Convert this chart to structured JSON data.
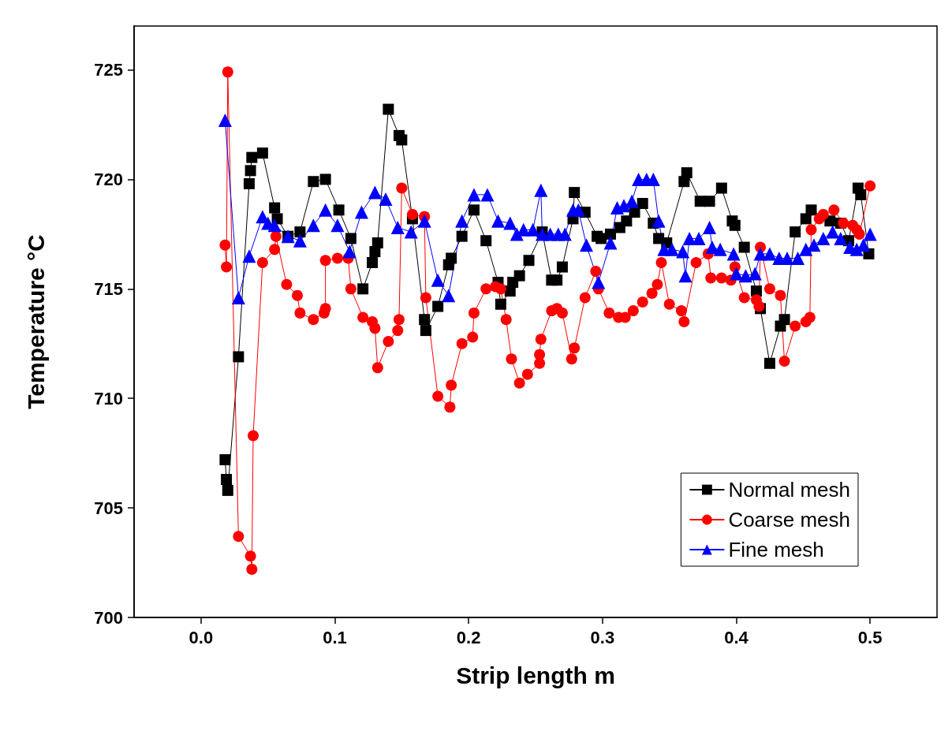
{
  "chart_data": {
    "type": "line",
    "xlabel": "Strip length m",
    "ylabel": "Temperature °C",
    "xlim": [
      -0.05,
      0.55
    ],
    "xticks": [
      {
        "value": 0,
        "label": "0.0"
      },
      0.1,
      0.2,
      0.3,
      0.4,
      0.5
    ],
    "ylim": [
      700,
      727
    ],
    "yticks": [
      700,
      705,
      710,
      715,
      720,
      725
    ],
    "grid": false,
    "legend": "bottom right",
    "line_style": "solid",
    "series": [
      {
        "name": "Normal mesh",
        "color": "#000000",
        "marker": "square",
        "x": [
          0.018,
          0.019,
          0.02,
          0.028,
          0.036,
          0.037,
          0.038,
          0.046,
          0.055,
          0.057,
          0.065,
          0.074,
          0.084,
          0.093,
          0.103,
          0.112,
          0.121,
          0.128,
          0.13,
          0.132,
          0.14,
          0.148,
          0.15,
          0.158,
          0.167,
          0.168,
          0.177,
          0.185,
          0.187,
          0.195,
          0.204,
          0.213,
          0.222,
          0.224,
          0.231,
          0.233,
          0.238,
          0.245,
          0.255,
          0.262,
          0.266,
          0.27,
          0.278,
          0.279,
          0.287,
          0.296,
          0.299,
          0.306,
          0.313,
          0.318,
          0.324,
          0.33,
          0.338,
          0.342,
          0.348,
          0.361,
          0.363,
          0.373,
          0.38,
          0.389,
          0.397,
          0.399,
          0.406,
          0.415,
          0.418,
          0.425,
          0.433,
          0.436,
          0.444,
          0.452,
          0.456,
          0.47,
          0.478,
          0.484,
          0.491,
          0.493,
          0.499
        ],
        "values": [
          707.2,
          706.3,
          705.8,
          711.9,
          719.8,
          720.4,
          721.0,
          721.2,
          718.7,
          718.2,
          717.4,
          717.6,
          719.9,
          720.0,
          718.6,
          717.3,
          715.0,
          716.2,
          716.7,
          717.1,
          723.2,
          722.0,
          721.8,
          718.2,
          713.6,
          713.1,
          714.2,
          716.1,
          716.4,
          717.4,
          718.6,
          717.2,
          715.3,
          714.3,
          714.9,
          715.3,
          715.6,
          716.3,
          717.6,
          715.4,
          715.4,
          716.0,
          718.2,
          719.4,
          718.5,
          717.4,
          717.3,
          717.5,
          717.8,
          718.1,
          718.5,
          718.9,
          718.0,
          717.3,
          717.1,
          719.9,
          720.3,
          719.0,
          719.0,
          719.6,
          718.1,
          717.9,
          716.9,
          714.9,
          714.1,
          711.6,
          713.3,
          713.6,
          717.6,
          718.2,
          718.6,
          718.1,
          718.0,
          717.2,
          719.6,
          719.3,
          716.6
        ]
      },
      {
        "name": "Coarse mesh",
        "color": "#ff0000",
        "marker": "circle",
        "x": [
          0.018,
          0.019,
          0.02,
          0.028,
          0.037,
          0.038,
          0.039,
          0.046,
          0.055,
          0.056,
          0.064,
          0.072,
          0.074,
          0.084,
          0.092,
          0.093,
          0.093,
          0.102,
          0.11,
          0.112,
          0.121,
          0.128,
          0.13,
          0.132,
          0.14,
          0.147,
          0.148,
          0.15,
          0.158,
          0.167,
          0.168,
          0.177,
          0.186,
          0.187,
          0.195,
          0.203,
          0.204,
          0.213,
          0.22,
          0.224,
          0.228,
          0.232,
          0.238,
          0.244,
          0.253,
          0.253,
          0.254,
          0.262,
          0.266,
          0.27,
          0.277,
          0.279,
          0.287,
          0.295,
          0.297,
          0.305,
          0.312,
          0.317,
          0.323,
          0.33,
          0.337,
          0.341,
          0.344,
          0.35,
          0.359,
          0.361,
          0.37,
          0.379,
          0.381,
          0.389,
          0.396,
          0.399,
          0.406,
          0.415,
          0.417,
          0.418,
          0.425,
          0.433,
          0.436,
          0.444,
          0.452,
          0.455,
          0.456,
          0.462,
          0.465,
          0.473,
          0.48,
          0.487,
          0.49,
          0.492,
          0.5
        ],
        "values": [
          717.0,
          716.0,
          724.9,
          703.7,
          702.8,
          702.2,
          708.3,
          716.2,
          716.8,
          717.4,
          715.2,
          714.7,
          713.9,
          713.6,
          713.9,
          714.1,
          716.3,
          716.4,
          716.4,
          715.0,
          713.7,
          713.5,
          713.2,
          711.4,
          712.6,
          713.1,
          713.6,
          719.6,
          718.4,
          718.3,
          714.6,
          710.1,
          709.6,
          710.6,
          712.5,
          712.8,
          713.9,
          715.0,
          715.1,
          715.0,
          713.6,
          711.8,
          710.7,
          711.1,
          711.6,
          712.0,
          712.7,
          714.0,
          714.1,
          713.9,
          711.8,
          712.3,
          714.6,
          715.8,
          715.0,
          713.9,
          713.7,
          713.7,
          714.0,
          714.4,
          714.8,
          715.2,
          716.2,
          714.3,
          714.0,
          713.5,
          716.2,
          716.6,
          715.5,
          715.5,
          715.4,
          716.0,
          714.6,
          714.5,
          714.2,
          716.9,
          715.0,
          714.7,
          711.7,
          713.3,
          713.5,
          713.7,
          717.7,
          718.2,
          718.4,
          718.6,
          718.0,
          717.9,
          717.7,
          717.5,
          719.7
        ]
      },
      {
        "name": "Fine mesh",
        "color": "#0000ff",
        "marker": "triangle",
        "x": [
          0.018,
          0.028,
          0.036,
          0.046,
          0.05,
          0.055,
          0.065,
          0.074,
          0.084,
          0.093,
          0.102,
          0.111,
          0.12,
          0.13,
          0.138,
          0.147,
          0.157,
          0.167,
          0.177,
          0.185,
          0.195,
          0.204,
          0.214,
          0.222,
          0.231,
          0.236,
          0.241,
          0.248,
          0.254,
          0.255,
          0.261,
          0.267,
          0.272,
          0.278,
          0.282,
          0.288,
          0.297,
          0.306,
          0.311,
          0.316,
          0.322,
          0.327,
          0.333,
          0.338,
          0.342,
          0.346,
          0.352,
          0.36,
          0.362,
          0.365,
          0.372,
          0.38,
          0.382,
          0.388,
          0.398,
          0.4,
          0.407,
          0.414,
          0.418,
          0.425,
          0.432,
          0.438,
          0.446,
          0.452,
          0.458,
          0.465,
          0.472,
          0.478,
          0.485,
          0.49,
          0.495,
          0.5
        ],
        "values": [
          722.7,
          714.6,
          716.5,
          718.3,
          718.0,
          717.9,
          717.4,
          717.2,
          717.9,
          718.6,
          717.9,
          716.7,
          718.5,
          719.4,
          719.1,
          717.8,
          717.6,
          718.1,
          715.4,
          714.7,
          718.1,
          719.3,
          719.3,
          718.1,
          718.0,
          717.5,
          717.7,
          717.7,
          719.5,
          717.5,
          717.5,
          717.5,
          717.5,
          718.6,
          718.6,
          717.0,
          715.3,
          717.1,
          718.7,
          718.8,
          719.0,
          720.0,
          720.0,
          720.0,
          718.1,
          716.8,
          716.8,
          716.7,
          715.6,
          717.3,
          717.3,
          717.8,
          716.9,
          716.8,
          716.6,
          715.7,
          715.6,
          715.7,
          716.6,
          716.6,
          716.4,
          716.4,
          716.4,
          716.8,
          717.0,
          717.3,
          717.6,
          717.3,
          716.9,
          716.8,
          717.0,
          717.5
        ]
      }
    ]
  }
}
